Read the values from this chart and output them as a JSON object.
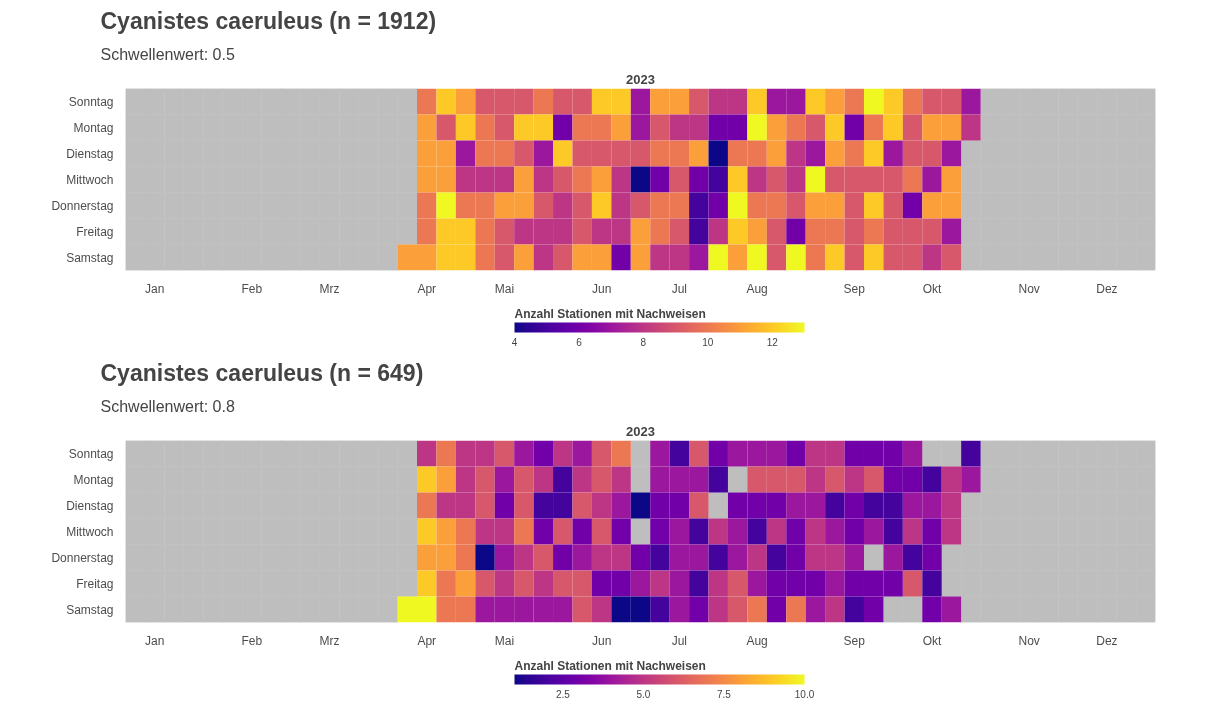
{
  "chart_data": [
    {
      "type": "heatmap",
      "title": "Cyanistes caeruleus (n = 1912)",
      "subtitle": "Schwellenwert: 0.5",
      "annotations": [
        "2023"
      ],
      "clabel": "Anzahl Stationen mit Nachweisen",
      "clim": [
        4,
        13
      ],
      "cticks": [
        4,
        6,
        8,
        10,
        12
      ],
      "categories": [
        null,
        "Jan",
        null,
        null,
        null,
        null,
        "Feb",
        null,
        null,
        null,
        "Mrz",
        null,
        null,
        null,
        null,
        "Apr",
        null,
        null,
        null,
        "Mai",
        null,
        null,
        null,
        null,
        "Jun",
        null,
        null,
        null,
        "Jul",
        null,
        null,
        null,
        "Aug",
        null,
        null,
        null,
        null,
        "Sep",
        null,
        null,
        null,
        "Okt",
        null,
        null,
        null,
        null,
        "Nov",
        null,
        null,
        null,
        "Dez",
        null,
        null
      ],
      "y_categories": [
        "Sonntag",
        "Montag",
        "Dienstag",
        "Mittwoch",
        "Donnerstag",
        "Freitag",
        "Samstag"
      ],
      "cells": [
        [
          null,
          null,
          null,
          null,
          null,
          null,
          null,
          null,
          null,
          null,
          null,
          null,
          null,
          null,
          null,
          10,
          12,
          11,
          9,
          9,
          9,
          10,
          9,
          9,
          12,
          12,
          7,
          11,
          11,
          9,
          8,
          8,
          12,
          7,
          7,
          12,
          11,
          10,
          13,
          12,
          10,
          9,
          9,
          7,
          null,
          null,
          null,
          null,
          null,
          null,
          null,
          null,
          null
        ],
        [
          null,
          null,
          null,
          null,
          null,
          null,
          null,
          null,
          null,
          null,
          null,
          null,
          null,
          null,
          null,
          11,
          9,
          12,
          10,
          9,
          12,
          12,
          6,
          10,
          10,
          11,
          7,
          9,
          8,
          8,
          6,
          6,
          13,
          11,
          10,
          9,
          12,
          6,
          10,
          12,
          9,
          11,
          11,
          8,
          null,
          null,
          null,
          null,
          null,
          null,
          null,
          null,
          null
        ],
        [
          null,
          null,
          null,
          null,
          null,
          null,
          null,
          null,
          null,
          null,
          null,
          null,
          null,
          null,
          null,
          11,
          11,
          7,
          10,
          10,
          9,
          7,
          12,
          9,
          9,
          9,
          9,
          10,
          10,
          11,
          4,
          10,
          10,
          11,
          8,
          7,
          11,
          10,
          12,
          7,
          9,
          9,
          7,
          null,
          null,
          null,
          null,
          null,
          null,
          null,
          null,
          null,
          null
        ],
        [
          null,
          null,
          null,
          null,
          null,
          null,
          null,
          null,
          null,
          null,
          null,
          null,
          null,
          null,
          null,
          11,
          11,
          8,
          8,
          8,
          11,
          8,
          9,
          10,
          11,
          8,
          4,
          6,
          9,
          6,
          5,
          12,
          8,
          9,
          8,
          13,
          9,
          9,
          9,
          9,
          10,
          7,
          11,
          null,
          null,
          null,
          null,
          null,
          null,
          null,
          null,
          null,
          null
        ],
        [
          null,
          null,
          null,
          null,
          null,
          null,
          null,
          null,
          null,
          null,
          null,
          null,
          null,
          null,
          null,
          10,
          13,
          10,
          10,
          11,
          11,
          9,
          8,
          9,
          12,
          8,
          9,
          10,
          10,
          5,
          6,
          13,
          10,
          10,
          9,
          11,
          11,
          9,
          12,
          9,
          6,
          11,
          11,
          null,
          null,
          null,
          null,
          null,
          null,
          null,
          null,
          null,
          null
        ],
        [
          null,
          null,
          null,
          null,
          null,
          null,
          null,
          null,
          null,
          null,
          null,
          null,
          null,
          null,
          null,
          10,
          12,
          12,
          10,
          9,
          8,
          8,
          8,
          9,
          8,
          8,
          11,
          10,
          9,
          5,
          8,
          12,
          11,
          9,
          6,
          10,
          10,
          9,
          10,
          9,
          9,
          9,
          7,
          null,
          null,
          null,
          null,
          null,
          null,
          null,
          null,
          null,
          null
        ],
        [
          null,
          null,
          null,
          null,
          null,
          null,
          null,
          null,
          null,
          null,
          null,
          null,
          null,
          null,
          11,
          11,
          12,
          12,
          10,
          9,
          11,
          8,
          9,
          11,
          11,
          6,
          11,
          8,
          8,
          7,
          13,
          11,
          13,
          9,
          13,
          10,
          12,
          9,
          12,
          9,
          9,
          8,
          9,
          null,
          null,
          null,
          null,
          null,
          null,
          null,
          null,
          null,
          null
        ]
      ]
    },
    {
      "type": "heatmap",
      "title": "Cyanistes caeruleus (n = 649)",
      "subtitle": "Schwellenwert: 0.8",
      "annotations": [
        "2023"
      ],
      "clabel": "Anzahl Stationen mit Nachweisen",
      "clim": [
        1,
        10
      ],
      "cticks": [
        2.5,
        {
          "value": 5,
          "label": "5.0"
        },
        7.5,
        {
          "value": 10,
          "label": "10.0"
        }
      ],
      "categories": [
        null,
        "Jan",
        null,
        null,
        null,
        null,
        "Feb",
        null,
        null,
        null,
        "Mrz",
        null,
        null,
        null,
        null,
        "Apr",
        null,
        null,
        null,
        "Mai",
        null,
        null,
        null,
        null,
        "Jun",
        null,
        null,
        null,
        "Jul",
        null,
        null,
        null,
        "Aug",
        null,
        null,
        null,
        null,
        "Sep",
        null,
        null,
        null,
        "Okt",
        null,
        null,
        null,
        null,
        "Nov",
        null,
        null,
        null,
        "Dez",
        null,
        null
      ],
      "y_categories": [
        "Sonntag",
        "Montag",
        "Dienstag",
        "Mittwoch",
        "Donnerstag",
        "Freitag",
        "Samstag"
      ],
      "cells": [
        [
          null,
          null,
          null,
          null,
          null,
          null,
          null,
          null,
          null,
          null,
          null,
          null,
          null,
          null,
          null,
          5,
          7,
          5,
          5,
          6,
          4,
          3,
          5,
          4,
          6,
          7,
          null,
          4,
          2,
          6,
          3,
          4,
          4,
          4,
          3,
          5,
          5,
          3,
          3,
          3,
          4,
          null,
          null,
          2,
          null,
          null,
          null,
          null,
          null,
          null,
          null,
          null,
          null
        ],
        [
          null,
          null,
          null,
          null,
          null,
          null,
          null,
          null,
          null,
          null,
          null,
          null,
          null,
          null,
          null,
          9,
          8,
          5,
          6,
          4,
          6,
          5,
          2,
          5,
          6,
          5,
          null,
          4,
          4,
          4,
          2,
          null,
          6,
          6,
          6,
          5,
          6,
          5,
          6,
          3,
          3,
          2,
          5,
          4,
          null,
          null,
          null,
          null,
          null,
          null,
          null,
          null,
          null
        ],
        [
          null,
          null,
          null,
          null,
          null,
          null,
          null,
          null,
          null,
          null,
          null,
          null,
          null,
          null,
          null,
          7,
          5,
          5,
          6,
          3,
          6,
          2,
          2,
          6,
          5,
          4,
          1,
          3,
          3,
          6,
          null,
          3,
          3,
          3,
          4,
          4,
          2,
          3,
          2,
          2,
          4,
          4,
          5,
          null,
          null,
          null,
          null,
          null,
          null,
          null,
          null,
          null,
          null
        ],
        [
          null,
          null,
          null,
          null,
          null,
          null,
          null,
          null,
          null,
          null,
          null,
          null,
          null,
          null,
          null,
          9,
          8,
          7,
          5,
          5,
          7,
          3,
          6,
          3,
          6,
          3,
          null,
          3,
          4,
          2,
          5,
          4,
          2,
          5,
          3,
          5,
          4,
          3,
          4,
          2,
          5,
          3,
          5,
          null,
          null,
          null,
          null,
          null,
          null,
          null,
          null,
          null,
          null
        ],
        [
          null,
          null,
          null,
          null,
          null,
          null,
          null,
          null,
          null,
          null,
          null,
          null,
          null,
          null,
          null,
          8,
          8,
          7,
          1,
          4,
          5,
          6,
          3,
          4,
          5,
          5,
          3,
          2,
          4,
          4,
          2,
          4,
          5,
          2,
          3,
          5,
          5,
          4,
          null,
          4,
          2,
          3,
          null,
          null,
          null,
          null,
          null,
          null,
          null,
          null,
          null,
          null,
          null
        ],
        [
          null,
          null,
          null,
          null,
          null,
          null,
          null,
          null,
          null,
          null,
          null,
          null,
          null,
          null,
          null,
          9,
          7,
          8,
          6,
          5,
          6,
          5,
          6,
          6,
          3,
          3,
          4,
          5,
          4,
          2,
          5,
          6,
          4,
          3,
          3,
          3,
          4,
          3,
          3,
          3,
          6,
          2,
          null,
          null,
          null,
          null,
          null,
          null,
          null,
          null,
          null,
          null,
          null
        ],
        [
          null,
          null,
          null,
          null,
          null,
          null,
          null,
          null,
          null,
          null,
          null,
          null,
          null,
          null,
          10,
          10,
          7,
          7,
          4,
          4,
          4,
          4,
          4,
          6,
          5,
          1,
          1,
          2,
          4,
          3,
          5,
          6,
          7,
          3,
          7,
          4,
          5,
          2,
          3,
          null,
          null,
          3,
          4,
          null,
          null,
          null,
          null,
          null,
          null,
          null,
          null,
          null,
          null
        ]
      ]
    }
  ]
}
